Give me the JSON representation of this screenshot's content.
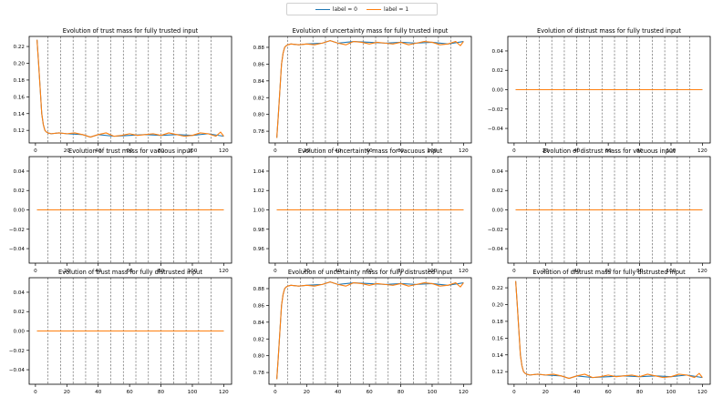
{
  "legend": {
    "entries": [
      {
        "label": "label = 0",
        "color": "#1f77b4"
      },
      {
        "label": "label = 1",
        "color": "#ff7f0e"
      }
    ]
  },
  "chart_data": [
    {
      "type": "line",
      "row": 0,
      "col": 0,
      "title": "Evolution of trust mass for fully trusted input",
      "xlim": [
        -4,
        125
      ],
      "ylim": [
        0.105,
        0.232
      ],
      "yticks": [
        0.12,
        0.14,
        0.16,
        0.18,
        0.2,
        0.22
      ],
      "ytick_labels": [
        "0.12",
        "0.14",
        "0.16",
        "0.18",
        "0.20",
        "0.22"
      ],
      "xticks": [
        0,
        20,
        40,
        60,
        80,
        100,
        120
      ],
      "vlines": [
        8,
        16,
        24,
        32,
        40,
        48,
        56,
        64,
        72,
        80,
        88,
        96,
        104,
        112
      ],
      "grid": false,
      "series": [
        {
          "name": "label = 0",
          "color": "#1f77b4",
          "x": [
            1,
            2,
            3,
            4,
            5,
            6,
            7,
            8,
            10,
            15,
            20,
            30,
            35,
            40,
            50,
            60,
            70,
            80,
            90,
            100,
            110,
            120
          ],
          "y": [
            0.228,
            0.2,
            0.17,
            0.14,
            0.127,
            0.12,
            0.118,
            0.117,
            0.116,
            0.117,
            0.116,
            0.115,
            0.112,
            0.115,
            0.113,
            0.114,
            0.115,
            0.114,
            0.115,
            0.114,
            0.116,
            0.113
          ]
        },
        {
          "name": "label = 1",
          "color": "#ff7f0e",
          "x": [
            1,
            2,
            3,
            4,
            5,
            6,
            7,
            8,
            10,
            15,
            20,
            25,
            30,
            35,
            40,
            45,
            50,
            55,
            60,
            65,
            70,
            75,
            80,
            85,
            90,
            95,
            100,
            105,
            110,
            115,
            118,
            120
          ],
          "y": [
            0.228,
            0.2,
            0.17,
            0.14,
            0.127,
            0.12,
            0.118,
            0.117,
            0.116,
            0.117,
            0.116,
            0.117,
            0.115,
            0.112,
            0.115,
            0.117,
            0.113,
            0.114,
            0.116,
            0.114,
            0.115,
            0.116,
            0.114,
            0.117,
            0.115,
            0.113,
            0.114,
            0.117,
            0.116,
            0.113,
            0.118,
            0.113
          ]
        }
      ]
    },
    {
      "type": "line",
      "row": 0,
      "col": 1,
      "title": "Evolution of uncertainty mass for fully trusted input",
      "xlim": [
        -4,
        125
      ],
      "ylim": [
        0.766,
        0.893
      ],
      "yticks": [
        0.78,
        0.8,
        0.82,
        0.84,
        0.86,
        0.88
      ],
      "ytick_labels": [
        "0.78",
        "0.80",
        "0.82",
        "0.84",
        "0.86",
        "0.88"
      ],
      "xticks": [
        0,
        20,
        40,
        60,
        80,
        100,
        120
      ],
      "vlines": [
        8,
        16,
        24,
        32,
        40,
        48,
        56,
        64,
        72,
        80,
        88,
        96,
        104,
        112
      ],
      "grid": false,
      "series": [
        {
          "name": "label = 0",
          "color": "#1f77b4",
          "x": [
            1,
            2,
            3,
            4,
            5,
            6,
            7,
            8,
            10,
            15,
            20,
            30,
            35,
            40,
            50,
            60,
            70,
            80,
            90,
            100,
            110,
            120
          ],
          "y": [
            0.772,
            0.8,
            0.83,
            0.86,
            0.873,
            0.88,
            0.882,
            0.883,
            0.884,
            0.883,
            0.884,
            0.885,
            0.888,
            0.885,
            0.887,
            0.886,
            0.885,
            0.886,
            0.885,
            0.886,
            0.884,
            0.887
          ]
        },
        {
          "name": "label = 1",
          "color": "#ff7f0e",
          "x": [
            1,
            2,
            3,
            4,
            5,
            6,
            7,
            8,
            10,
            15,
            20,
            25,
            30,
            35,
            40,
            45,
            50,
            55,
            60,
            65,
            70,
            75,
            80,
            85,
            90,
            95,
            100,
            105,
            110,
            115,
            118,
            120
          ],
          "y": [
            0.772,
            0.8,
            0.83,
            0.86,
            0.873,
            0.88,
            0.882,
            0.883,
            0.884,
            0.883,
            0.884,
            0.883,
            0.885,
            0.888,
            0.885,
            0.883,
            0.887,
            0.886,
            0.884,
            0.886,
            0.885,
            0.884,
            0.886,
            0.883,
            0.885,
            0.887,
            0.886,
            0.883,
            0.884,
            0.887,
            0.882,
            0.887
          ]
        }
      ]
    },
    {
      "type": "line",
      "row": 0,
      "col": 2,
      "title": "Evolution of distrust mass for fully trusted input",
      "xlim": [
        -4,
        125
      ],
      "ylim": [
        -0.055,
        0.055
      ],
      "yticks": [
        -0.04,
        -0.02,
        0.0,
        0.02,
        0.04
      ],
      "ytick_labels": [
        "−0.04",
        "−0.02",
        "0.00",
        "0.02",
        "0.04"
      ],
      "xticks": [
        0,
        20,
        40,
        60,
        80,
        100,
        120
      ],
      "vlines": [
        8,
        16,
        24,
        32,
        40,
        48,
        56,
        64,
        72,
        80,
        88,
        96,
        104,
        112
      ],
      "grid": false,
      "series": [
        {
          "name": "label = 0",
          "color": "#1f77b4",
          "x": [
            1,
            120
          ],
          "y": [
            0,
            0
          ]
        },
        {
          "name": "label = 1",
          "color": "#ff7f0e",
          "x": [
            1,
            120
          ],
          "y": [
            0,
            0
          ]
        }
      ]
    },
    {
      "type": "line",
      "row": 1,
      "col": 0,
      "title": "Evolution of trust mass for vacuous input",
      "xlim": [
        -4,
        125
      ],
      "ylim": [
        -0.055,
        0.055
      ],
      "yticks": [
        -0.04,
        -0.02,
        0.0,
        0.02,
        0.04
      ],
      "ytick_labels": [
        "−0.04",
        "−0.02",
        "0.00",
        "0.02",
        "0.04"
      ],
      "xticks": [
        0,
        20,
        40,
        60,
        80,
        100,
        120
      ],
      "vlines": [
        8,
        16,
        24,
        32,
        40,
        48,
        56,
        64,
        72,
        80,
        88,
        96,
        104,
        112
      ],
      "grid": false,
      "series": [
        {
          "name": "label = 0",
          "color": "#1f77b4",
          "x": [
            1,
            120
          ],
          "y": [
            0,
            0
          ]
        },
        {
          "name": "label = 1",
          "color": "#ff7f0e",
          "x": [
            1,
            120
          ],
          "y": [
            0,
            0
          ]
        }
      ]
    },
    {
      "type": "line",
      "row": 1,
      "col": 1,
      "title": "Evolution of uncertainty mass for vacuous input",
      "xlim": [
        -4,
        125
      ],
      "ylim": [
        0.945,
        1.055
      ],
      "yticks": [
        0.96,
        0.98,
        1.0,
        1.02,
        1.04
      ],
      "ytick_labels": [
        "0.96",
        "0.98",
        "1.00",
        "1.02",
        "1.04"
      ],
      "xticks": [
        0,
        20,
        40,
        60,
        80,
        100,
        120
      ],
      "vlines": [
        8,
        16,
        24,
        32,
        40,
        48,
        56,
        64,
        72,
        80,
        88,
        96,
        104,
        112
      ],
      "grid": false,
      "series": [
        {
          "name": "label = 0",
          "color": "#1f77b4",
          "x": [
            1,
            120
          ],
          "y": [
            1,
            1
          ]
        },
        {
          "name": "label = 1",
          "color": "#ff7f0e",
          "x": [
            1,
            120
          ],
          "y": [
            1,
            1
          ]
        }
      ]
    },
    {
      "type": "line",
      "row": 1,
      "col": 2,
      "title": "Evolution of distrust mass for vacuous input",
      "xlim": [
        -4,
        125
      ],
      "ylim": [
        -0.055,
        0.055
      ],
      "yticks": [
        -0.04,
        -0.02,
        0.0,
        0.02,
        0.04
      ],
      "ytick_labels": [
        "−0.04",
        "−0.02",
        "0.00",
        "0.02",
        "0.04"
      ],
      "xticks": [
        0,
        20,
        40,
        60,
        80,
        100,
        120
      ],
      "vlines": [
        8,
        16,
        24,
        32,
        40,
        48,
        56,
        64,
        72,
        80,
        88,
        96,
        104,
        112
      ],
      "grid": false,
      "series": [
        {
          "name": "label = 0",
          "color": "#1f77b4",
          "x": [
            1,
            120
          ],
          "y": [
            0,
            0
          ]
        },
        {
          "name": "label = 1",
          "color": "#ff7f0e",
          "x": [
            1,
            120
          ],
          "y": [
            0,
            0
          ]
        }
      ]
    },
    {
      "type": "line",
      "row": 2,
      "col": 0,
      "title": "Evolution of trust mass for fully distrusted input",
      "xlim": [
        -4,
        125
      ],
      "ylim": [
        -0.055,
        0.055
      ],
      "yticks": [
        -0.04,
        -0.02,
        0.0,
        0.02,
        0.04
      ],
      "ytick_labels": [
        "−0.04",
        "−0.02",
        "0.00",
        "0.02",
        "0.04"
      ],
      "xticks": [
        0,
        20,
        40,
        60,
        80,
        100,
        120
      ],
      "vlines": [
        8,
        16,
        24,
        32,
        40,
        48,
        56,
        64,
        72,
        80,
        88,
        96,
        104,
        112
      ],
      "grid": false,
      "series": [
        {
          "name": "label = 0",
          "color": "#1f77b4",
          "x": [
            1,
            120
          ],
          "y": [
            0,
            0
          ]
        },
        {
          "name": "label = 1",
          "color": "#ff7f0e",
          "x": [
            1,
            120
          ],
          "y": [
            0,
            0
          ]
        }
      ]
    },
    {
      "type": "line",
      "row": 2,
      "col": 1,
      "title": "Evolution of uncertainty mass for fully distrusted input",
      "xlim": [
        -4,
        125
      ],
      "ylim": [
        0.766,
        0.893
      ],
      "yticks": [
        0.78,
        0.8,
        0.82,
        0.84,
        0.86,
        0.88
      ],
      "ytick_labels": [
        "0.78",
        "0.80",
        "0.82",
        "0.84",
        "0.86",
        "0.88"
      ],
      "xticks": [
        0,
        20,
        40,
        60,
        80,
        100,
        120
      ],
      "vlines": [
        8,
        16,
        24,
        32,
        40,
        48,
        56,
        64,
        72,
        80,
        88,
        96,
        104,
        112
      ],
      "grid": false,
      "series": [
        {
          "name": "label = 0",
          "color": "#1f77b4",
          "x": [
            1,
            2,
            3,
            4,
            5,
            6,
            7,
            8,
            10,
            15,
            20,
            30,
            35,
            40,
            50,
            60,
            70,
            80,
            90,
            100,
            110,
            120
          ],
          "y": [
            0.772,
            0.8,
            0.83,
            0.86,
            0.873,
            0.88,
            0.882,
            0.883,
            0.884,
            0.883,
            0.884,
            0.885,
            0.888,
            0.885,
            0.887,
            0.886,
            0.885,
            0.886,
            0.885,
            0.886,
            0.884,
            0.887
          ]
        },
        {
          "name": "label = 1",
          "color": "#ff7f0e",
          "x": [
            1,
            2,
            3,
            4,
            5,
            6,
            7,
            8,
            10,
            15,
            20,
            25,
            30,
            35,
            40,
            45,
            50,
            55,
            60,
            65,
            70,
            75,
            80,
            85,
            90,
            95,
            100,
            105,
            110,
            115,
            118,
            120
          ],
          "y": [
            0.772,
            0.8,
            0.83,
            0.86,
            0.873,
            0.88,
            0.882,
            0.883,
            0.884,
            0.883,
            0.884,
            0.883,
            0.885,
            0.888,
            0.885,
            0.883,
            0.887,
            0.886,
            0.884,
            0.886,
            0.885,
            0.884,
            0.886,
            0.883,
            0.885,
            0.887,
            0.886,
            0.883,
            0.884,
            0.887,
            0.882,
            0.887
          ]
        }
      ]
    },
    {
      "type": "line",
      "row": 2,
      "col": 2,
      "title": "Evolution of distrust mass for fully distrusted input",
      "xlim": [
        -4,
        125
      ],
      "ylim": [
        0.105,
        0.232
      ],
      "yticks": [
        0.12,
        0.14,
        0.16,
        0.18,
        0.2,
        0.22
      ],
      "ytick_labels": [
        "0.12",
        "0.14",
        "0.16",
        "0.18",
        "0.20",
        "0.22"
      ],
      "xticks": [
        0,
        20,
        40,
        60,
        80,
        100,
        120
      ],
      "vlines": [
        8,
        16,
        24,
        32,
        40,
        48,
        56,
        64,
        72,
        80,
        88,
        96,
        104,
        112
      ],
      "grid": false,
      "series": [
        {
          "name": "label = 0",
          "color": "#1f77b4",
          "x": [
            1,
            2,
            3,
            4,
            5,
            6,
            7,
            8,
            10,
            15,
            20,
            30,
            35,
            40,
            50,
            60,
            70,
            80,
            90,
            100,
            110,
            120
          ],
          "y": [
            0.228,
            0.2,
            0.17,
            0.14,
            0.127,
            0.12,
            0.118,
            0.117,
            0.116,
            0.117,
            0.116,
            0.115,
            0.112,
            0.115,
            0.113,
            0.114,
            0.115,
            0.114,
            0.115,
            0.114,
            0.116,
            0.113
          ]
        },
        {
          "name": "label = 1",
          "color": "#ff7f0e",
          "x": [
            1,
            2,
            3,
            4,
            5,
            6,
            7,
            8,
            10,
            15,
            20,
            25,
            30,
            35,
            40,
            45,
            50,
            55,
            60,
            65,
            70,
            75,
            80,
            85,
            90,
            95,
            100,
            105,
            110,
            115,
            118,
            120
          ],
          "y": [
            0.228,
            0.2,
            0.17,
            0.14,
            0.127,
            0.12,
            0.118,
            0.117,
            0.116,
            0.117,
            0.116,
            0.117,
            0.115,
            0.112,
            0.115,
            0.117,
            0.113,
            0.114,
            0.116,
            0.114,
            0.115,
            0.116,
            0.114,
            0.117,
            0.115,
            0.113,
            0.114,
            0.117,
            0.116,
            0.113,
            0.118,
            0.113
          ]
        }
      ]
    }
  ]
}
